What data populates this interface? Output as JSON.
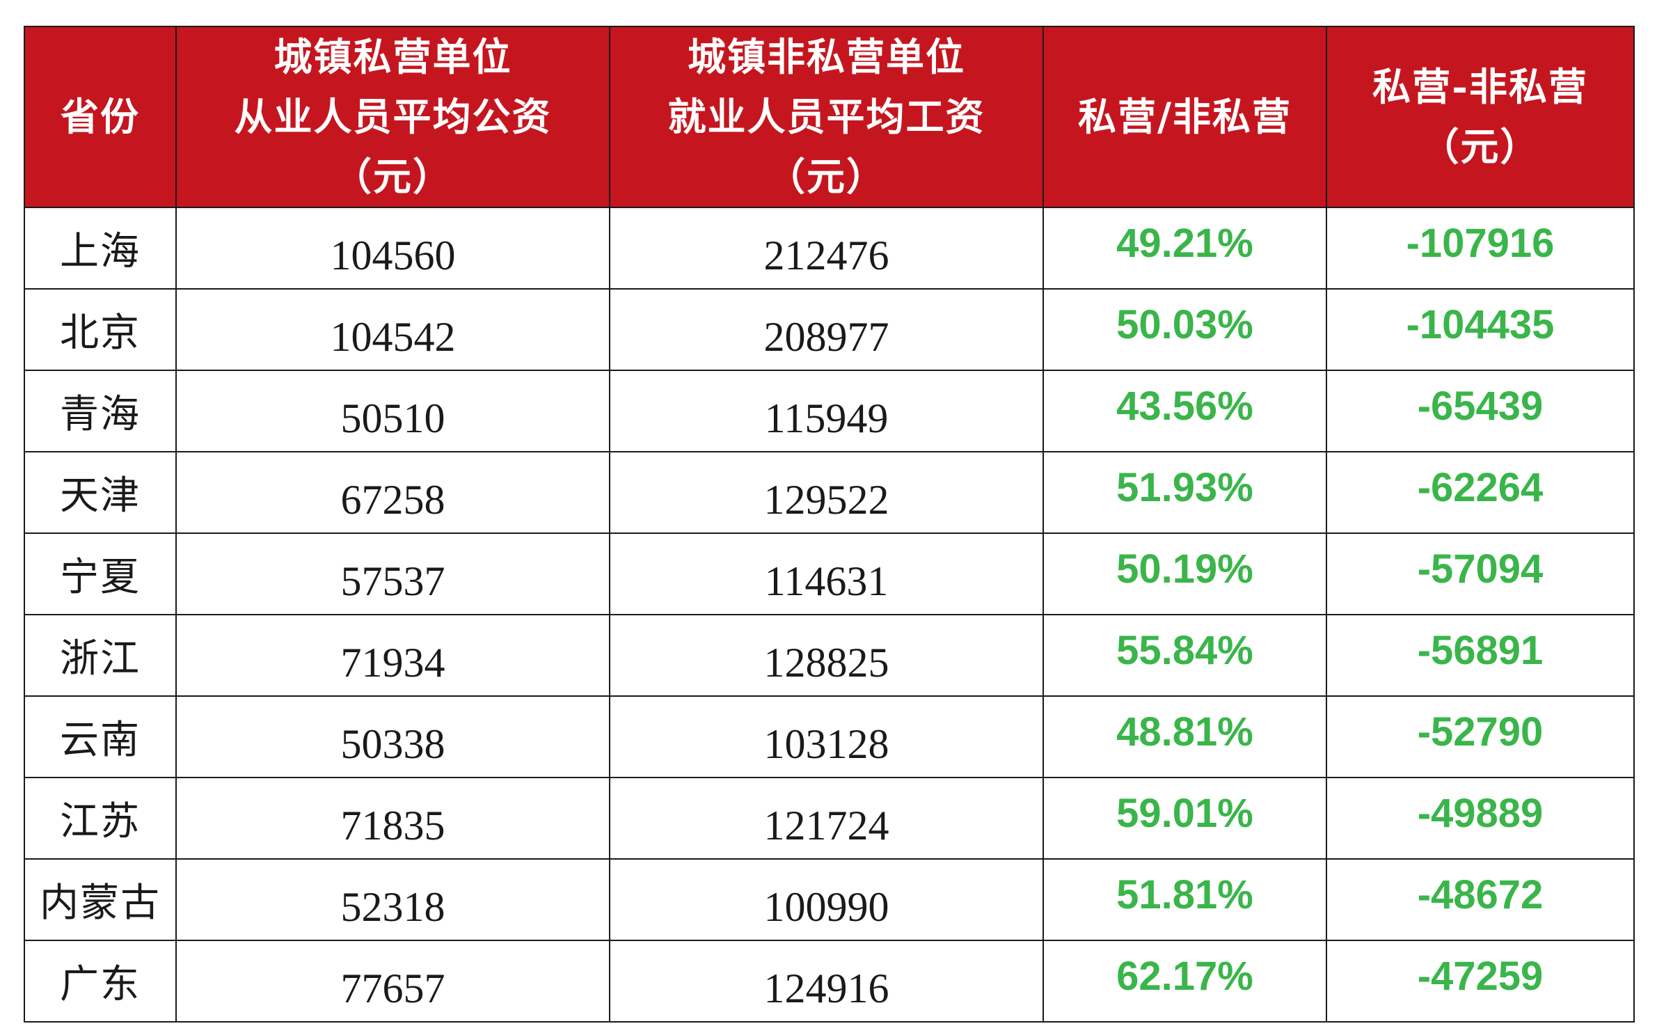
{
  "table": {
    "headers": [
      {
        "lines": [
          "省份"
        ]
      },
      {
        "lines": [
          "城镇私营单位",
          "从业人员平均公资",
          "（元）"
        ]
      },
      {
        "lines": [
          "城镇非私营单位",
          "就业人员平均工资",
          "（元）"
        ]
      },
      {
        "lines": [
          "私营/非私营"
        ]
      },
      {
        "lines": [
          "私营-非私营",
          "（元）"
        ]
      }
    ],
    "rows": [
      {
        "province": "上海",
        "private": "104560",
        "non_private": "212476",
        "ratio": "49.21%",
        "diff": "-107916"
      },
      {
        "province": "北京",
        "private": "104542",
        "non_private": "208977",
        "ratio": "50.03%",
        "diff": "-104435"
      },
      {
        "province": "青海",
        "private": "50510",
        "non_private": "115949",
        "ratio": "43.56%",
        "diff": "-65439"
      },
      {
        "province": "天津",
        "private": "67258",
        "non_private": "129522",
        "ratio": "51.93%",
        "diff": "-62264"
      },
      {
        "province": "宁夏",
        "private": "57537",
        "non_private": "114631",
        "ratio": "50.19%",
        "diff": "-57094"
      },
      {
        "province": "浙江",
        "private": "71934",
        "non_private": "128825",
        "ratio": "55.84%",
        "diff": "-56891"
      },
      {
        "province": "云南",
        "private": "50338",
        "non_private": "103128",
        "ratio": "48.81%",
        "diff": "-52790"
      },
      {
        "province": "江苏",
        "private": "71835",
        "non_private": "121724",
        "ratio": "59.01%",
        "diff": "-49889"
      },
      {
        "province": "内蒙古",
        "private": "52318",
        "non_private": "100990",
        "ratio": "51.81%",
        "diff": "-48672"
      },
      {
        "province": "广东",
        "private": "77657",
        "non_private": "124916",
        "ratio": "62.17%",
        "diff": "-47259"
      }
    ]
  },
  "colors": {
    "header_bg": "#c5161f",
    "header_text": "#ffffff",
    "highlight_green": "#3ab54a",
    "body_text": "#1a1a1a"
  }
}
